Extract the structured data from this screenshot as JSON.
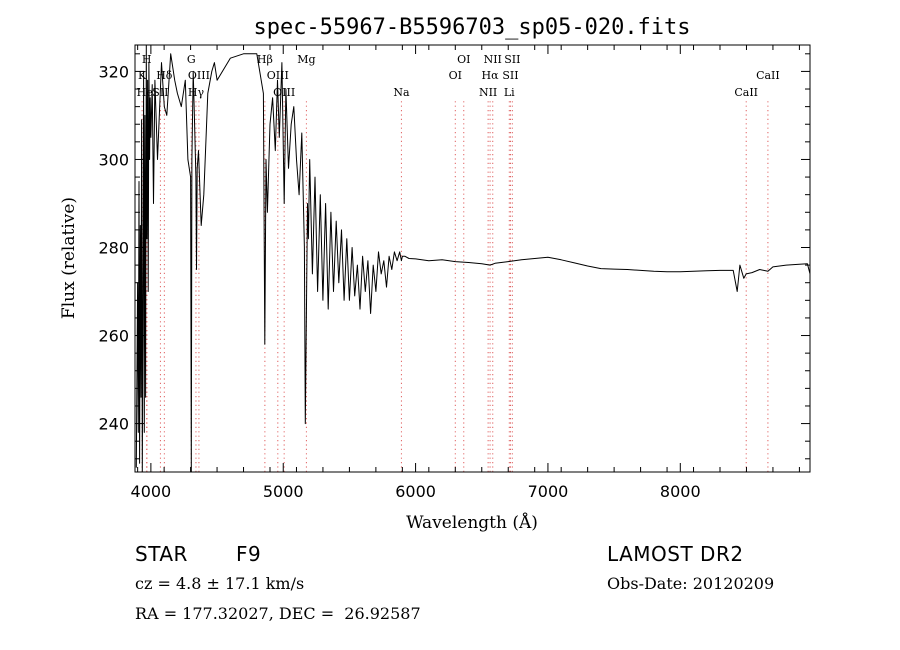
{
  "chart_data": {
    "type": "line",
    "title": "spec-55967-B5596703_sp05-020.fits",
    "xlabel": "Wavelength (Å)",
    "ylabel": "Flux (relative)",
    "xlim": [
      3880,
      8980
    ],
    "ylim": [
      229,
      326
    ],
    "x_ticks": [
      4000,
      5000,
      6000,
      7000,
      8000
    ],
    "y_ticks": [
      240,
      260,
      280,
      300,
      320
    ],
    "grid": false,
    "series": [
      {
        "color": "#000000",
        "x": [
          3890,
          3900,
          3905,
          3910,
          3915,
          3920,
          3925,
          3930,
          3935,
          3940,
          3945,
          3950,
          3955,
          3960,
          3965,
          3970,
          3975,
          3980,
          3985,
          3990,
          3995,
          4000,
          4010,
          4020,
          4030,
          4050,
          4080,
          4101,
          4120,
          4150,
          4180,
          4200,
          4230,
          4260,
          4280,
          4300,
          4305,
          4310,
          4320,
          4330,
          4340,
          4345,
          4350,
          4360,
          4380,
          4400,
          4430,
          4460,
          4480,
          4500,
          4600,
          4700,
          4800,
          4850,
          4861,
          4870,
          4880,
          4900,
          4920,
          4940,
          4957,
          4970,
          4990,
          5007,
          5020,
          5040,
          5060,
          5080,
          5100,
          5120,
          5140,
          5160,
          5167,
          5173,
          5183,
          5190,
          5200,
          5220,
          5240,
          5260,
          5280,
          5300,
          5320,
          5340,
          5360,
          5380,
          5400,
          5420,
          5440,
          5460,
          5480,
          5500,
          5520,
          5540,
          5560,
          5580,
          5600,
          5620,
          5640,
          5660,
          5680,
          5700,
          5720,
          5740,
          5760,
          5780,
          5800,
          5820,
          5840,
          5860,
          5880,
          5893,
          5900,
          5920,
          5950,
          6000,
          6100,
          6200,
          6300,
          6400,
          6500,
          6563,
          6600,
          6700,
          6800,
          6900,
          7000,
          7100,
          7200,
          7300,
          7400,
          7500,
          7600,
          7700,
          7800,
          7900,
          8000,
          8100,
          8200,
          8300,
          8400,
          8430,
          8450,
          8480,
          8498,
          8542,
          8600,
          8662,
          8700,
          8800,
          8900,
          8960,
          8980
        ],
        "values": [
          230,
          272,
          238,
          295,
          231,
          285,
          246,
          309,
          229,
          262,
          320,
          238,
          310,
          246,
          326,
          282,
          318,
          270,
          322,
          300,
          314,
          305,
          317,
          290,
          318,
          300,
          322,
          312,
          310,
          324,
          318,
          315,
          312,
          318,
          300,
          296,
          229,
          300,
          320,
          308,
          296,
          275,
          298,
          302,
          285,
          292,
          315,
          320,
          322,
          318,
          323,
          324,
          324,
          315,
          258,
          300,
          288,
          308,
          314,
          302,
          318,
          305,
          322,
          290,
          316,
          298,
          308,
          312,
          300,
          292,
          306,
          280,
          240,
          258,
          290,
          282,
          300,
          274,
          296,
          270,
          292,
          268,
          290,
          266,
          288,
          270,
          286,
          272,
          284,
          268,
          282,
          268,
          280,
          269,
          276,
          266,
          278,
          270,
          277,
          265,
          276,
          270,
          279,
          274,
          277,
          271,
          278,
          275,
          279,
          277,
          279,
          277,
          278,
          278,
          277.5,
          277.4,
          277,
          277.2,
          276.8,
          276.6,
          276.3,
          276,
          276.4,
          276.8,
          277.2,
          277.5,
          277.8,
          277.2,
          276.5,
          275.8,
          275.2,
          275.1,
          275,
          274.8,
          274.6,
          274.5,
          274.5,
          274.6,
          274.7,
          274.8,
          274.8,
          270,
          276,
          273,
          274,
          274.3,
          275,
          274.6,
          275.6,
          276,
          276.2,
          276.3,
          274
        ]
      }
    ],
    "line_markers": [
      {
        "label": "K",
        "x": 3933.7,
        "row": 2
      },
      {
        "label": "H",
        "x": 3968.5,
        "row": 1
      },
      {
        "label": "HeI",
        "x": 3970,
        "row": 3
      },
      {
        "label": "Hδ",
        "x": 4101.7,
        "row": 2
      },
      {
        "label": "SII",
        "x": 4072,
        "row": 3
      },
      {
        "label": "G",
        "x": 4305,
        "row": 1
      },
      {
        "label": "Hγ",
        "x": 4340.5,
        "row": 3
      },
      {
        "label": "OIII",
        "x": 4363,
        "row": 2
      },
      {
        "label": "Hβ",
        "x": 4861.3,
        "row": 1
      },
      {
        "label": "OIII",
        "x": 4959,
        "row": 2
      },
      {
        "label": "OIII",
        "x": 5007,
        "row": 3
      },
      {
        "label": "Mg",
        "x": 5175,
        "row": 1
      },
      {
        "label": "Na",
        "x": 5893,
        "row": 3
      },
      {
        "label": "OI",
        "x": 6300,
        "row": 2
      },
      {
        "label": "OI",
        "x": 6364,
        "row": 1
      },
      {
        "label": "NII",
        "x": 6548,
        "row": 3
      },
      {
        "label": "Hα",
        "x": 6562.8,
        "row": 2
      },
      {
        "label": "NII",
        "x": 6583,
        "row": 1
      },
      {
        "label": "SII",
        "x": 6717,
        "row": 2
      },
      {
        "label": "SII",
        "x": 6731,
        "row": 1
      },
      {
        "label": "Li",
        "x": 6708,
        "row": 3
      },
      {
        "label": "CaII",
        "x": 8498,
        "row": 3
      },
      {
        "label": "CaII",
        "x": 8662,
        "row": 2
      }
    ]
  },
  "info": {
    "object_class": "STAR",
    "subclass": "F9",
    "survey": "LAMOST DR2",
    "redshift_text": "cz = 4.8 ± 17.1 km/s",
    "obs_date_text": "Obs-Date: 20120209",
    "coords_text": "RA = 177.32027, DEC =  26.92587"
  }
}
